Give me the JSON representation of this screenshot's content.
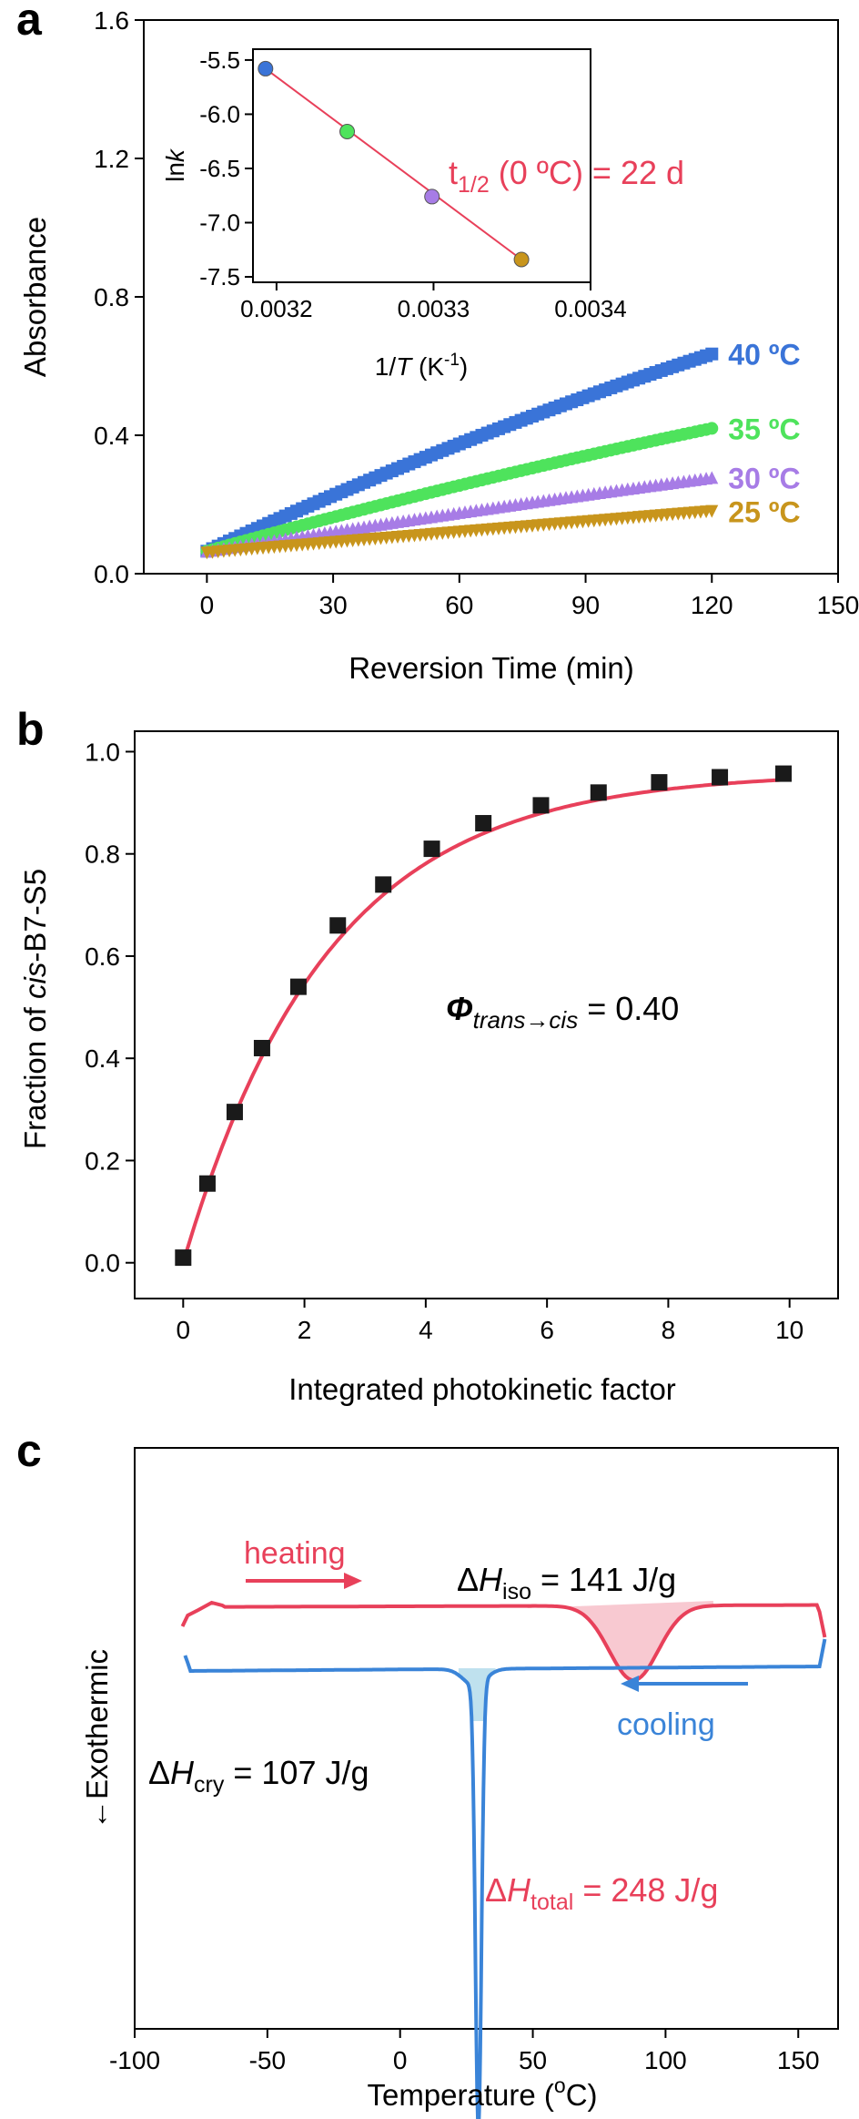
{
  "chart_data": [
    {
      "panel": "a",
      "type": "scatter",
      "xlabel": "Reversion Time (min)",
      "ylabel": "Absorbance",
      "xlim": [
        -15,
        150
      ],
      "ylim": [
        0,
        1.6
      ],
      "xticks": [
        0,
        30,
        60,
        90,
        120,
        150
      ],
      "yticks": [
        0.0,
        0.4,
        0.8,
        1.2,
        1.6
      ],
      "series": [
        {
          "name": "40 ºC",
          "color": "#3a74d8",
          "marker": "square",
          "x_start": 0,
          "x_end": 120,
          "y_start": 0.065,
          "y_end": 0.635,
          "curvature": 0.05
        },
        {
          "name": "35 ºC",
          "color": "#4ee35c",
          "marker": "circle",
          "x_start": 0,
          "x_end": 120,
          "y_start": 0.065,
          "y_end": 0.42,
          "curvature": 0.025
        },
        {
          "name": "30 ºC",
          "color": "#a77ce6",
          "marker": "triangle-up",
          "x_start": 0,
          "x_end": 120,
          "y_start": 0.065,
          "y_end": 0.278,
          "curvature": 0.01
        },
        {
          "name": "25 ºC",
          "color": "#c8951c",
          "marker": "triangle-down",
          "x_start": 0,
          "x_end": 120,
          "y_start": 0.06,
          "y_end": 0.18,
          "curvature": 0.0
        }
      ],
      "annotation": {
        "main": "t",
        "sub": "1/2",
        "rest": " (0 ºC) = 22 d",
        "color": "#e8405a"
      },
      "inset": {
        "type": "scatter",
        "xlabel_pre": "1/",
        "xlabel_var": "T",
        "xlabel_post": " (K",
        "xlabel_sup": "-1",
        "xlabel_end": ")",
        "ylabel_pre": "ln",
        "ylabel_var": "k",
        "xlim": [
          0.003185,
          0.0034
        ],
        "ylim": [
          -7.55,
          -5.4
        ],
        "xticks": [
          0.0032,
          0.0033,
          0.0034
        ],
        "xticklabels": [
          "0.0032",
          "0.0033",
          "0.0034"
        ],
        "yticks": [
          -7.5,
          -7.0,
          -6.5,
          -6.0,
          -5.5
        ],
        "yticklabels": [
          "-7.5",
          "-7.0",
          "-6.5",
          "-6.0",
          "-5.5"
        ],
        "points": [
          {
            "x": 0.003193,
            "y": -5.58,
            "color": "#3a74d8"
          },
          {
            "x": 0.003245,
            "y": -6.16,
            "color": "#4ee35c"
          },
          {
            "x": 0.003299,
            "y": -6.76,
            "color": "#a77ce6"
          },
          {
            "x": 0.003356,
            "y": -7.34,
            "color": "#c8951c"
          }
        ],
        "fit_color": "#e8405a"
      }
    },
    {
      "panel": "b",
      "type": "scatter",
      "xlabel": "Integrated photokinetic factor",
      "ylabel_pre": "Fraction of ",
      "ylabel_italic": "cis",
      "ylabel_post": "-B7-S5",
      "xlim": [
        -0.8,
        10.8
      ],
      "ylim": [
        -0.07,
        1.04
      ],
      "xticks": [
        0,
        2,
        4,
        6,
        8,
        10
      ],
      "yticks": [
        0.0,
        0.2,
        0.4,
        0.6,
        0.8,
        1.0
      ],
      "yticklabels": [
        "0.0",
        "0.2",
        "0.4",
        "0.6",
        "0.8",
        "1.0"
      ],
      "x": [
        0,
        0.4,
        0.85,
        1.3,
        1.9,
        2.55,
        3.3,
        4.1,
        4.95,
        5.9,
        6.85,
        7.85,
        8.85,
        9.9
      ],
      "y": [
        0.01,
        0.155,
        0.295,
        0.42,
        0.54,
        0.66,
        0.74,
        0.81,
        0.86,
        0.895,
        0.92,
        0.94,
        0.95,
        0.957
      ],
      "marker_color": "#1a1a1a",
      "fit": {
        "a": 0.96,
        "k": 0.42,
        "color": "#e8405a"
      },
      "annotation": {
        "phi": "Φ",
        "sub": "trans→cis",
        "rest": " = 0.40"
      }
    },
    {
      "panel": "c",
      "type": "line",
      "xlabel_pre": "Temperature (",
      "xlabel_sup": "o",
      "xlabel_post": "C)",
      "ylabel": "←Exothermic",
      "xlim": [
        -100,
        165
      ],
      "xticks": [
        -100,
        -50,
        0,
        50,
        100,
        150
      ],
      "heating": {
        "color": "#e8405a",
        "label": "heating",
        "fill": "#f8c9d1"
      },
      "cooling": {
        "color": "#3a84d8",
        "label": "cooling",
        "fill": "#bfe1ee"
      },
      "annotations": {
        "iso": {
          "pre": "Δ",
          "var": "H",
          "sub": "iso",
          "rest": " = 141 J/g"
        },
        "cry": {
          "pre": "Δ",
          "var": "H",
          "sub": "cry",
          "rest": " = 107 J/g"
        },
        "total": {
          "pre": "Δ",
          "var": "H",
          "sub": "total",
          "rest": " = 248 J/g",
          "color": "#e8405a"
        }
      }
    }
  ],
  "panels": {
    "a": "a",
    "b": "b",
    "c": "c"
  }
}
